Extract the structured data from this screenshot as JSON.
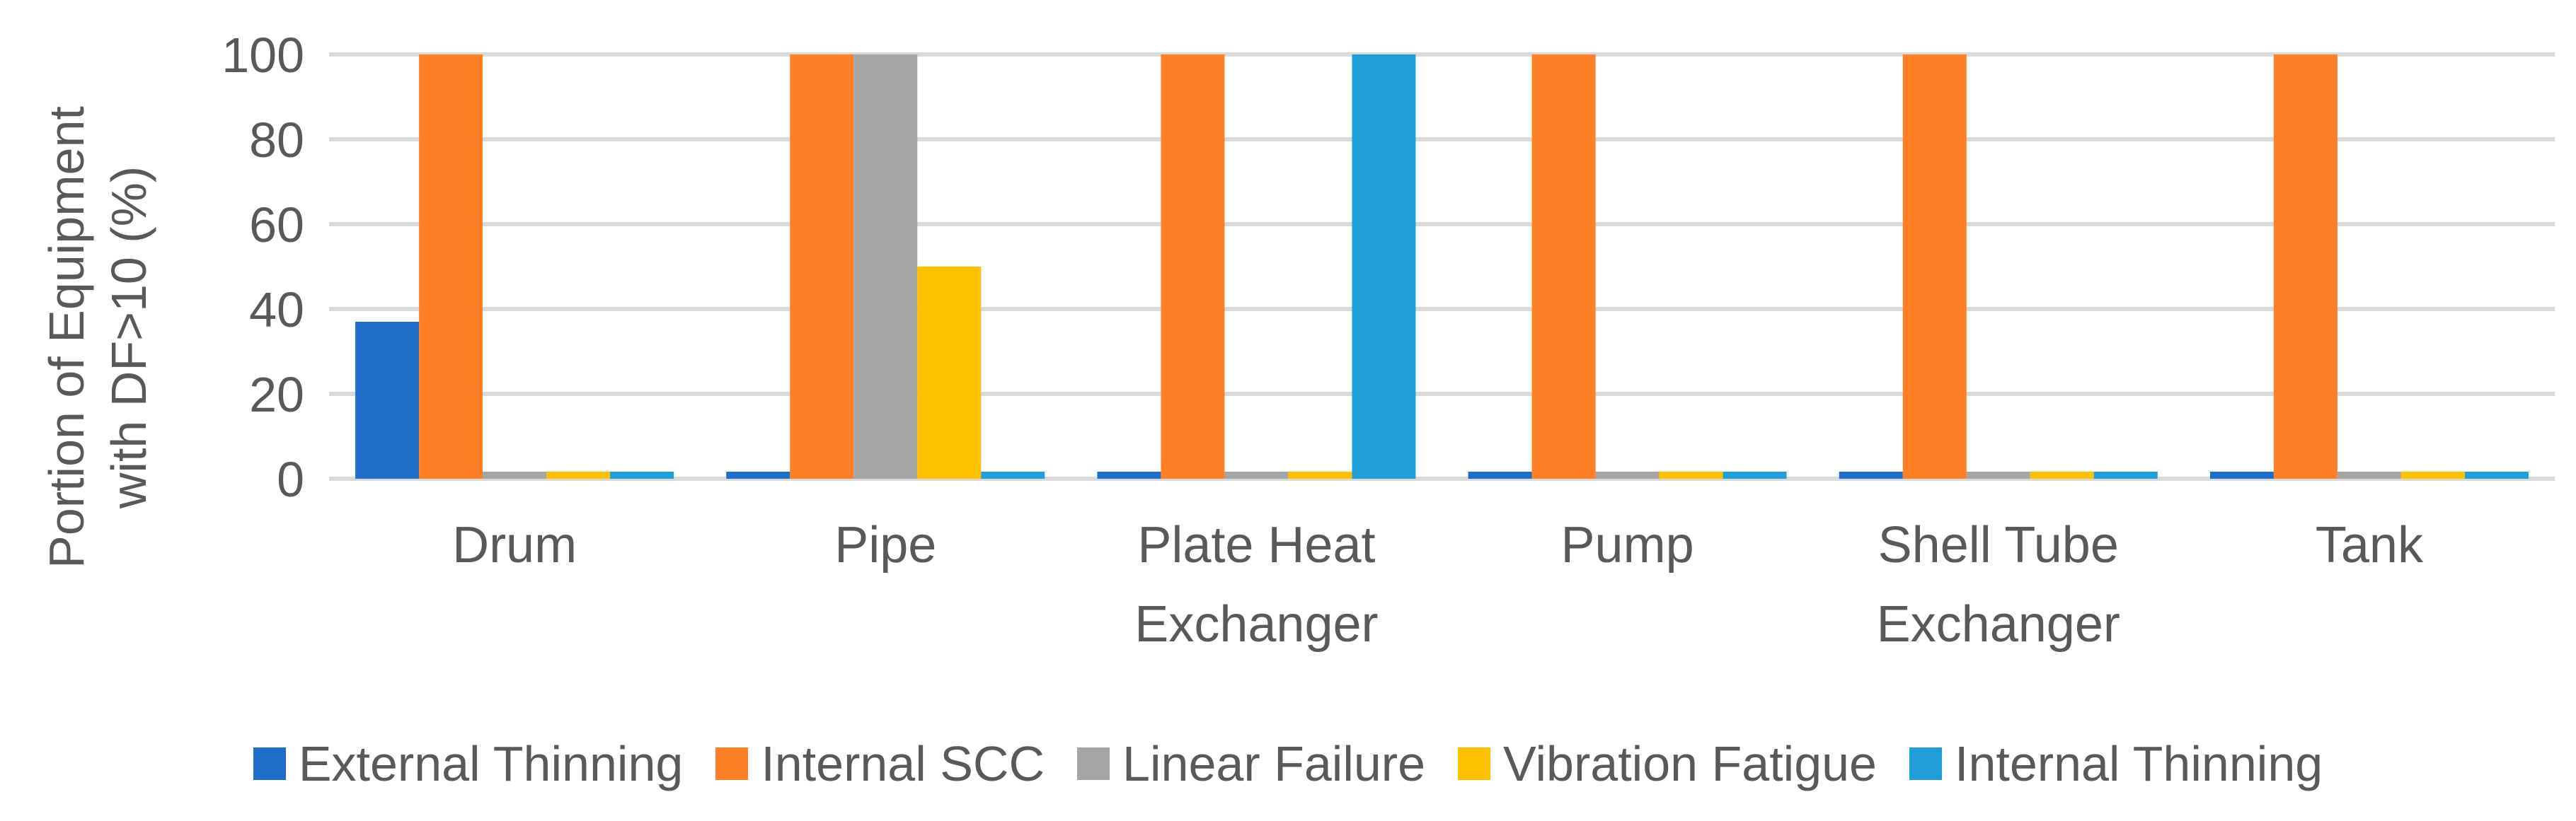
{
  "chart_data": {
    "type": "bar",
    "title": "",
    "xlabel": "",
    "ylabel": "Portion of Equipment with DF>10 (%)",
    "ylabel_lines": [
      "Portion of Equipment",
      "with DF>10 (%)"
    ],
    "ylim": [
      0,
      100
    ],
    "yticks": [
      0,
      20,
      40,
      60,
      80,
      100
    ],
    "grid": true,
    "legend_position": "bottom",
    "categories": [
      "Drum",
      "Pipe",
      "Plate Heat Exchanger",
      "Pump",
      "Shell Tube Exchanger",
      "Tank"
    ],
    "category_lines": [
      [
        "Drum"
      ],
      [
        "Pipe"
      ],
      [
        "Plate Heat",
        "Exchanger"
      ],
      [
        "Pump"
      ],
      [
        "Shell Tube",
        "Exchanger"
      ],
      [
        "Tank"
      ]
    ],
    "series": [
      {
        "name": "External Thinning",
        "color": "#1F6FCA",
        "values": [
          37,
          0,
          0,
          0,
          0,
          0
        ]
      },
      {
        "name": "Internal SCC",
        "color": "#FF7F27",
        "values": [
          100,
          100,
          100,
          100,
          100,
          100
        ]
      },
      {
        "name": "Linear Failure",
        "color": "#A5A5A5",
        "values": [
          0,
          100,
          0,
          0,
          0,
          0
        ]
      },
      {
        "name": "Vibration Fatigue",
        "color": "#FFC000",
        "values": [
          0,
          50,
          0,
          0,
          0,
          0
        ]
      },
      {
        "name": "Internal Thinning",
        "color": "#1F9ED8",
        "values": [
          0,
          0,
          100,
          0,
          0,
          0
        ]
      }
    ]
  }
}
